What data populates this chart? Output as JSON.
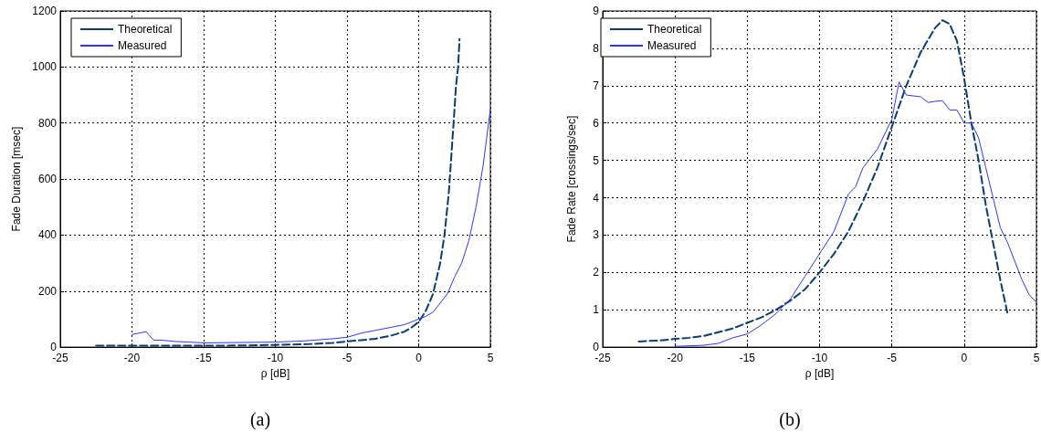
{
  "chart_data": [
    {
      "type": "line",
      "xlabel": "ρ [dB]",
      "ylabel": "Fade Duration [msec]",
      "annotations": [
        "(a)"
      ],
      "xlim": [
        -25,
        5
      ],
      "xticks": [
        -25,
        -20,
        -15,
        -10,
        -5,
        0,
        5
      ],
      "ylim": [
        0,
        1200
      ],
      "yticks": [
        0,
        200,
        400,
        600,
        800,
        1000,
        1200
      ],
      "grid": true,
      "legend": "top left",
      "marker": "none",
      "series": [
        {
          "name": "Theoretical",
          "color": "#0b3d6e",
          "line_style": "dashed",
          "x": [
            -22.5,
            -20,
            -15,
            -12,
            -10,
            -8,
            -6,
            -5,
            -4,
            -3,
            -2,
            -1,
            -0.5,
            0,
            0.5,
            1,
            1.5,
            1.8,
            2.1,
            2.3,
            2.5,
            2.6,
            2.75,
            2.85
          ],
          "values": [
            5,
            5,
            5,
            6,
            8,
            10,
            15,
            20,
            25,
            30,
            40,
            55,
            70,
            90,
            130,
            190,
            300,
            400,
            550,
            700,
            850,
            930,
            1000,
            1100
          ]
        },
        {
          "name": "Measured",
          "color": "#3333ff",
          "line_style": "solid",
          "x": [
            -20,
            -19.5,
            -19,
            -18.5,
            -18,
            -17,
            -16,
            -15,
            -10,
            -8,
            -6,
            -5,
            -4,
            -3,
            -2,
            -1,
            0,
            0.5,
            1,
            2,
            2.5,
            3,
            3.5,
            4,
            4.5,
            5
          ],
          "values": [
            45,
            50,
            55,
            25,
            25,
            20,
            18,
            15,
            18,
            22,
            30,
            35,
            50,
            60,
            70,
            80,
            100,
            110,
            125,
            190,
            250,
            300,
            380,
            500,
            650,
            850
          ]
        }
      ]
    },
    {
      "type": "line",
      "xlabel": "ρ [dB]",
      "ylabel": "Fade Rate [crossings/sec]",
      "annotations": [
        "(b)"
      ],
      "xlim": [
        -25,
        5
      ],
      "xticks": [
        -25,
        -20,
        -15,
        -10,
        -5,
        0,
        5
      ],
      "ylim": [
        0,
        9
      ],
      "yticks": [
        0,
        1,
        2,
        3,
        4,
        5,
        6,
        7,
        8,
        9
      ],
      "grid": true,
      "legend": "top left",
      "marker": "none",
      "series": [
        {
          "name": "Theoretical",
          "color": "#0b3d6e",
          "line_style": "dashed",
          "x": [
            -22.5,
            -21,
            -20,
            -19,
            -18,
            -17,
            -16,
            -15,
            -14,
            -13,
            -12,
            -11,
            -10,
            -9,
            -8,
            -7,
            -6,
            -5,
            -4,
            -3,
            -2,
            -1.5,
            -1,
            -0.5,
            0,
            0.5,
            1,
            1.5,
            2,
            2.5,
            3
          ],
          "values": [
            0.15,
            0.18,
            0.22,
            0.25,
            0.3,
            0.4,
            0.5,
            0.65,
            0.8,
            1.0,
            1.25,
            1.55,
            2.0,
            2.5,
            3.1,
            3.9,
            4.8,
            5.9,
            7.0,
            7.9,
            8.55,
            8.75,
            8.65,
            8.2,
            7.2,
            6.0,
            5.0,
            3.8,
            2.8,
            1.8,
            0.9
          ]
        },
        {
          "name": "Measured",
          "color": "#3333ff",
          "line_style": "solid",
          "x": [
            -20,
            -18,
            -17,
            -16,
            -15,
            -14,
            -13,
            -12,
            -11,
            -10,
            -9,
            -8,
            -7.5,
            -7,
            -6,
            -5,
            -4.5,
            -4,
            -3,
            -2.5,
            -2,
            -1.5,
            -1,
            -0.5,
            0,
            0.5,
            1,
            1.5,
            2,
            2.5,
            3,
            3.5,
            4,
            4.5,
            5
          ],
          "values": [
            0.02,
            0.05,
            0.1,
            0.25,
            0.35,
            0.6,
            0.9,
            1.3,
            1.9,
            2.5,
            3.1,
            4.1,
            4.3,
            4.8,
            5.3,
            6.1,
            7.1,
            6.75,
            6.7,
            6.55,
            6.58,
            6.6,
            6.35,
            6.35,
            6.0,
            6.0,
            5.6,
            4.8,
            4.0,
            3.2,
            2.8,
            2.3,
            1.8,
            1.4,
            1.2
          ]
        }
      ]
    }
  ]
}
